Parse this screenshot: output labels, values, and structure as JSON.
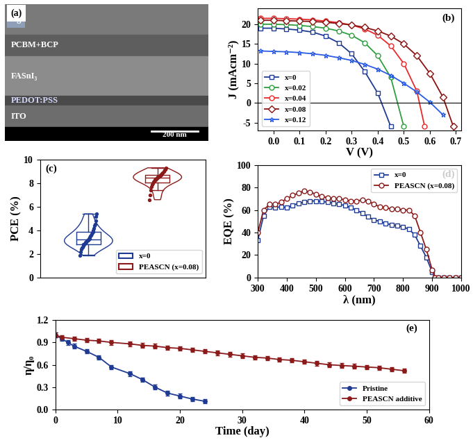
{
  "sem_image": {
    "panel": "(a)",
    "layers": [
      "Ag",
      "PCBM+BCP",
      "FASnI₃",
      "PEDOT:PSS",
      "ITO"
    ],
    "scale_bar": "200 nm"
  },
  "chart_data": [
    {
      "panel": "(b)",
      "type": "line",
      "x_label": "V (V)",
      "y_label": "J (mAcm⁻²)",
      "xlim": [
        -0.06,
        0.72
      ],
      "xticks": [
        0.0,
        0.1,
        0.2,
        0.3,
        0.4,
        0.5,
        0.6,
        0.7
      ],
      "ylim": [
        -7,
        24
      ],
      "yticks": [
        -5,
        0,
        5,
        10,
        15,
        20
      ],
      "legend": "lower left",
      "series": [
        {
          "name": "x=0",
          "color": "#1f3a93",
          "marker": "square",
          "x": [
            -0.05,
            0.0,
            0.05,
            0.1,
            0.15,
            0.2,
            0.25,
            0.3,
            0.35,
            0.4,
            0.45
          ],
          "values": [
            19,
            19,
            18.8,
            18.5,
            18,
            17,
            15.3,
            12.5,
            8,
            2.5,
            -6
          ]
        },
        {
          "name": "x=0.02",
          "color": "#2e9e3e",
          "marker": "circle",
          "x": [
            -0.05,
            0.0,
            0.05,
            0.1,
            0.15,
            0.2,
            0.25,
            0.3,
            0.35,
            0.4,
            0.45,
            0.5
          ],
          "values": [
            20,
            20,
            19.9,
            19.7,
            19.4,
            19,
            18.3,
            17.2,
            15.3,
            12,
            6.5,
            -6
          ]
        },
        {
          "name": "x=0.04",
          "color": "#e8292b",
          "marker": "circle",
          "x": [
            -0.05,
            0.0,
            0.05,
            0.1,
            0.15,
            0.2,
            0.25,
            0.3,
            0.35,
            0.4,
            0.45,
            0.5,
            0.55,
            0.58
          ],
          "values": [
            21.5,
            21.5,
            21.4,
            21.3,
            21.1,
            20.8,
            20.4,
            19.8,
            18.8,
            17.2,
            14.5,
            10,
            3,
            -6
          ]
        },
        {
          "name": "x=0.08",
          "color": "#8b1111",
          "marker": "diamond",
          "x": [
            -0.05,
            0.0,
            0.05,
            0.1,
            0.15,
            0.2,
            0.25,
            0.3,
            0.35,
            0.4,
            0.45,
            0.5,
            0.55,
            0.6,
            0.65,
            0.69
          ],
          "values": [
            21,
            21,
            20.9,
            20.8,
            20.7,
            20.5,
            20.2,
            19.8,
            19.2,
            18.3,
            17,
            15,
            12,
            7.5,
            1.5,
            -6
          ]
        },
        {
          "name": "x=0.12",
          "color": "#2a5ce6",
          "marker": "star",
          "x": [
            -0.05,
            0.0,
            0.05,
            0.1,
            0.15,
            0.2,
            0.25,
            0.3,
            0.35,
            0.4,
            0.45,
            0.5,
            0.55,
            0.6,
            0.65
          ],
          "values": [
            13.2,
            13.1,
            13,
            12.8,
            12.5,
            12.1,
            11.5,
            10.8,
            9.8,
            8.6,
            7,
            5,
            2.8,
            0.2,
            -3
          ]
        }
      ]
    },
    {
      "panel": "(c)",
      "type": "box",
      "y_label": "PCE (%)",
      "ylim": [
        0,
        10
      ],
      "yticks": [
        0,
        2,
        4,
        6,
        8,
        10
      ],
      "legend": "lower right",
      "tick_labels": "y",
      "series": [
        {
          "name": "x=0",
          "color": "#1f3a93",
          "values": [
            1.9,
            2.2,
            2.4,
            2.5,
            2.6,
            2.7,
            2.8,
            2.8,
            2.9,
            3.0,
            3.0,
            3.1,
            3.1,
            3.2,
            3.2,
            3.3,
            3.3,
            3.4,
            3.5,
            3.6,
            3.7,
            3.8,
            3.9,
            4.0,
            4.2,
            4.4,
            4.5,
            4.8,
            5.2,
            5.4
          ]
        },
        {
          "name": "PEASCN (x=0.08)",
          "color": "#8b1a1a",
          "values": [
            6.6,
            7.0,
            7.4,
            7.7,
            7.9,
            8.0,
            8.1,
            8.2,
            8.3,
            8.3,
            8.4,
            8.4,
            8.5,
            8.5,
            8.6,
            8.6,
            8.7,
            8.7,
            8.8,
            8.9,
            9.0,
            9.1,
            9.2,
            9.3
          ]
        }
      ]
    },
    {
      "panel": "(d)",
      "type": "line",
      "x_label": "λ (nm)",
      "y_label": "EQE (%)",
      "xlim": [
        300,
        1000
      ],
      "xticks": [
        300,
        400,
        500,
        600,
        700,
        800,
        900,
        1000
      ],
      "ylim": [
        0,
        100
      ],
      "yticks": [
        0,
        20,
        40,
        60,
        80,
        100
      ],
      "legend": "upper right",
      "series": [
        {
          "name": "x=0",
          "color": "#1f3a93",
          "marker": "square",
          "x": [
            300,
            320,
            340,
            360,
            380,
            400,
            420,
            440,
            460,
            480,
            500,
            520,
            540,
            560,
            580,
            600,
            620,
            640,
            660,
            680,
            700,
            720,
            740,
            760,
            780,
            800,
            820,
            840,
            860,
            880,
            900,
            910,
            920,
            940,
            960,
            980,
            1000
          ],
          "values": [
            33,
            55,
            63,
            62,
            63,
            62,
            64,
            66,
            67,
            68,
            68,
            67.5,
            67,
            66,
            65,
            64,
            62,
            60,
            57,
            54,
            51,
            50,
            48,
            47,
            46,
            45,
            43,
            38,
            28,
            18,
            5,
            0,
            0,
            0,
            0,
            0,
            0
          ]
        },
        {
          "name": "PEASCN (x=0.08)",
          "color": "#8b1a1a",
          "marker": "circle",
          "x": [
            300,
            320,
            340,
            360,
            380,
            400,
            420,
            440,
            460,
            480,
            500,
            520,
            540,
            560,
            580,
            600,
            620,
            640,
            660,
            680,
            700,
            720,
            740,
            760,
            780,
            800,
            820,
            840,
            860,
            880,
            900,
            910,
            920,
            940,
            960,
            980,
            1000
          ],
          "values": [
            40,
            60,
            65,
            65,
            67,
            70,
            73,
            75,
            77,
            76,
            74,
            72,
            71,
            70,
            70,
            69,
            68,
            68,
            69,
            68,
            65,
            63,
            62,
            61,
            61,
            60,
            60,
            55,
            40,
            25,
            7,
            0,
            0,
            0,
            0,
            0,
            0
          ]
        }
      ]
    },
    {
      "panel": "(e)",
      "type": "errorbar",
      "x_label": "Time (day)",
      "y_label": "η/η₀",
      "xlim": [
        0,
        60
      ],
      "xticks": [
        0,
        10,
        20,
        30,
        40,
        50,
        60
      ],
      "ylim": [
        0.0,
        1.2
      ],
      "yticks": [
        0.0,
        0.3,
        0.6,
        0.9,
        1.2
      ],
      "legend": "lower right",
      "series": [
        {
          "name": "Pristine",
          "color": "#1f3a93",
          "marker": "circle",
          "x": [
            0,
            1,
            2,
            3,
            5,
            7,
            9,
            12,
            14,
            16,
            18,
            20,
            22,
            24
          ],
          "values": [
            1.0,
            0.95,
            0.9,
            0.85,
            0.78,
            0.7,
            0.57,
            0.48,
            0.4,
            0.3,
            0.22,
            0.18,
            0.14,
            0.11
          ],
          "errors": [
            0.03,
            0.03,
            0.03,
            0.03,
            0.03,
            0.03,
            0.03,
            0.03,
            0.03,
            0.03,
            0.03,
            0.03,
            0.03,
            0.03
          ]
        },
        {
          "name": "PEASCN additive",
          "color": "#8b1a1a",
          "marker": "circle",
          "x": [
            0,
            1,
            3,
            5,
            7,
            9,
            12,
            14,
            16,
            18,
            20,
            22,
            24,
            26,
            28,
            30,
            32,
            34,
            36,
            38,
            40,
            42,
            44,
            46,
            48,
            50,
            52,
            54,
            56
          ],
          "values": [
            1.0,
            0.97,
            0.95,
            0.93,
            0.92,
            0.9,
            0.88,
            0.86,
            0.85,
            0.83,
            0.82,
            0.8,
            0.78,
            0.76,
            0.74,
            0.72,
            0.7,
            0.69,
            0.67,
            0.66,
            0.64,
            0.62,
            0.6,
            0.59,
            0.58,
            0.57,
            0.56,
            0.54,
            0.52
          ],
          "errors": [
            0.03,
            0.03,
            0.03,
            0.03,
            0.03,
            0.03,
            0.03,
            0.03,
            0.03,
            0.03,
            0.03,
            0.03,
            0.03,
            0.03,
            0.03,
            0.03,
            0.03,
            0.03,
            0.03,
            0.03,
            0.03,
            0.03,
            0.03,
            0.03,
            0.03,
            0.03,
            0.03,
            0.03,
            0.03
          ]
        }
      ]
    }
  ]
}
